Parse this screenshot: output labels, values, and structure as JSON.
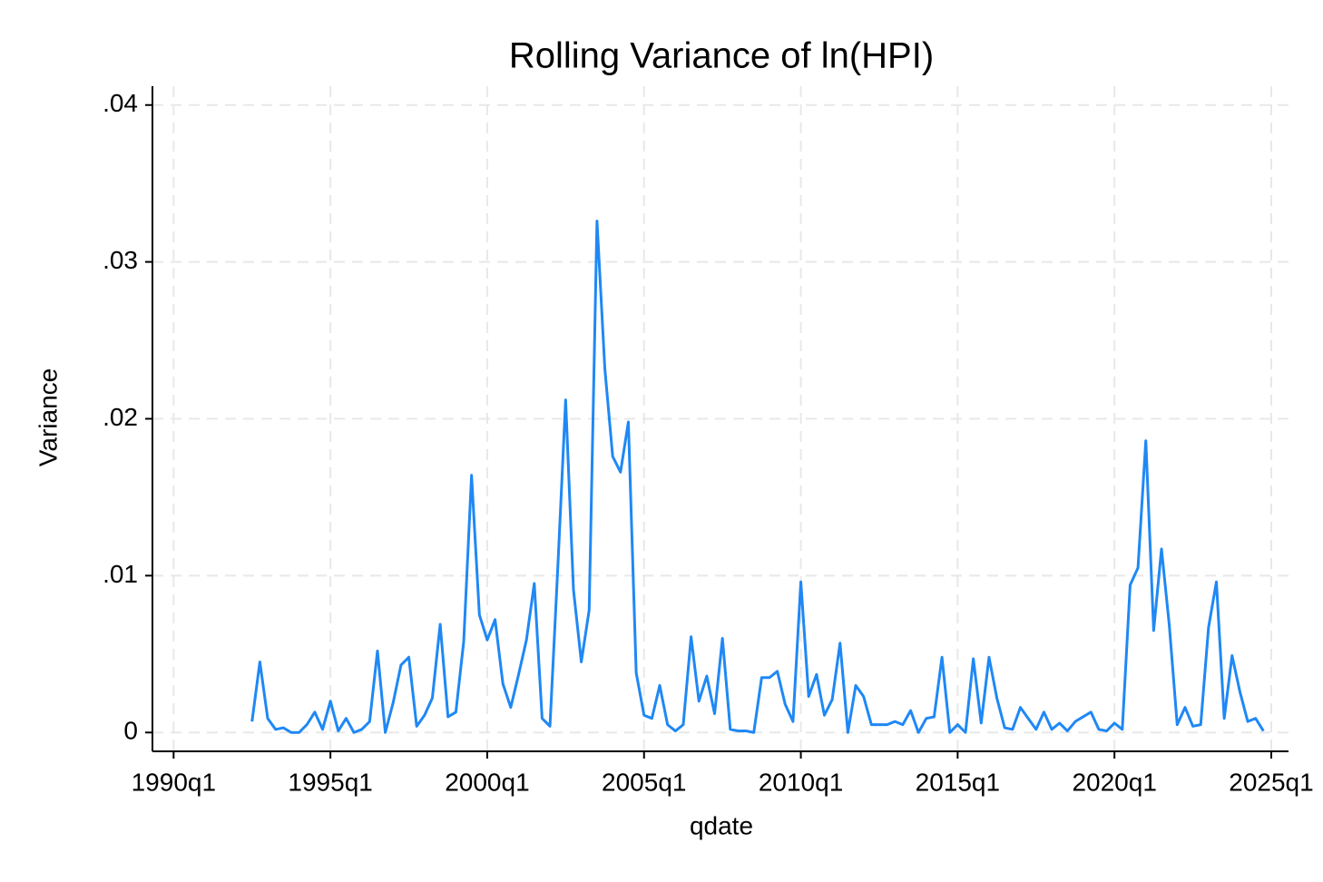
{
  "chart_data": {
    "type": "line",
    "title": "Rolling Variance of ln(HPI)",
    "x_label": "qdate",
    "y_label": "Variance",
    "x": [
      130,
      131,
      132,
      133,
      134,
      135,
      136,
      137,
      138,
      139,
      140,
      141,
      142,
      143,
      144,
      145,
      146,
      147,
      148,
      149,
      150,
      151,
      152,
      153,
      154,
      155,
      156,
      157,
      158,
      159,
      160,
      161,
      162,
      163,
      164,
      165,
      166,
      167,
      168,
      169,
      170,
      171,
      172,
      173,
      174,
      175,
      176,
      177,
      178,
      179,
      180,
      181,
      182,
      183,
      184,
      185,
      186,
      187,
      188,
      189,
      190,
      191,
      192,
      193,
      194,
      195,
      196,
      197,
      198,
      199,
      200,
      201,
      202,
      203,
      204,
      205,
      206,
      207,
      208,
      209,
      210,
      211,
      212,
      213,
      214,
      215,
      216,
      217,
      218,
      219,
      220,
      221,
      222,
      223,
      224,
      225,
      226,
      227,
      228,
      229,
      230,
      231,
      232,
      233,
      234,
      235,
      236,
      237,
      238,
      239,
      240,
      241,
      242,
      243,
      244,
      245,
      246,
      247,
      248,
      249,
      250,
      251,
      252,
      253,
      254,
      255,
      256,
      257,
      258,
      259
    ],
    "series": [
      {
        "color": "#1f88f5",
        "values": [
          0.0007,
          0.0045,
          0.0009,
          0.0002,
          0.0003,
          0.0,
          0.0,
          0.0005,
          0.0013,
          0.0002,
          0.002,
          0.0001,
          0.0009,
          0.0,
          0.0002,
          0.0007,
          0.0052,
          0.0,
          0.0019,
          0.0043,
          0.0048,
          0.0004,
          0.0011,
          0.0022,
          0.0069,
          0.001,
          0.0013,
          0.0058,
          0.0164,
          0.0075,
          0.0059,
          0.0072,
          0.0031,
          0.0016,
          0.0037,
          0.0059,
          0.0095,
          0.0009,
          0.0004,
          0.0105,
          0.0212,
          0.0091,
          0.0045,
          0.0078,
          0.0326,
          0.0232,
          0.0176,
          0.0166,
          0.0198,
          0.0038,
          0.0011,
          0.0009,
          0.003,
          0.0005,
          0.0001,
          0.0005,
          0.0061,
          0.002,
          0.0036,
          0.0012,
          0.006,
          0.0002,
          0.0001,
          0.0001,
          0.0,
          0.0035,
          0.0035,
          0.0039,
          0.0018,
          0.0007,
          0.0096,
          0.0023,
          0.0037,
          0.0011,
          0.0021,
          0.0057,
          0.0,
          0.003,
          0.0023,
          0.0005,
          0.0005,
          0.0005,
          0.0007,
          0.0005,
          0.0014,
          0.0,
          0.0009,
          0.001,
          0.0048,
          0.0,
          0.0005,
          0.0,
          0.0047,
          0.0006,
          0.0048,
          0.0022,
          0.0003,
          0.0002,
          0.0016,
          0.0009,
          0.0002,
          0.0013,
          0.0002,
          0.0006,
          0.0001,
          0.0007,
          0.001,
          0.0013,
          0.0002,
          0.0001,
          0.0006,
          0.0002,
          0.0094,
          0.0105,
          0.0186,
          0.0065,
          0.0117,
          0.0068,
          0.0005,
          0.0016,
          0.0004,
          0.0005,
          0.0067,
          0.0096,
          0.0009,
          0.0049,
          0.0026,
          0.0007,
          0.0009,
          0.0001
        ]
      }
    ],
    "xlim": [
      117.3,
      262.2
    ],
    "ylim": [
      -0.0012,
      0.0412
    ],
    "xticks": [
      {
        "value": 120,
        "label": "1990q1"
      },
      {
        "value": 140,
        "label": "1995q1"
      },
      {
        "value": 160,
        "label": "2000q1"
      },
      {
        "value": 180,
        "label": "2005q1"
      },
      {
        "value": 200,
        "label": "2010q1"
      },
      {
        "value": 220,
        "label": "2015q1"
      },
      {
        "value": 240,
        "label": "2020q1"
      },
      {
        "value": 260,
        "label": "2025q1"
      }
    ],
    "yticks": [
      0,
      {
        "value": 0.01,
        "label": ".01"
      },
      {
        "value": 0.02,
        "label": ".02"
      },
      {
        "value": 0.03,
        "label": ".03"
      },
      {
        "value": 0.04,
        "label": ".04"
      }
    ],
    "grid": true
  }
}
